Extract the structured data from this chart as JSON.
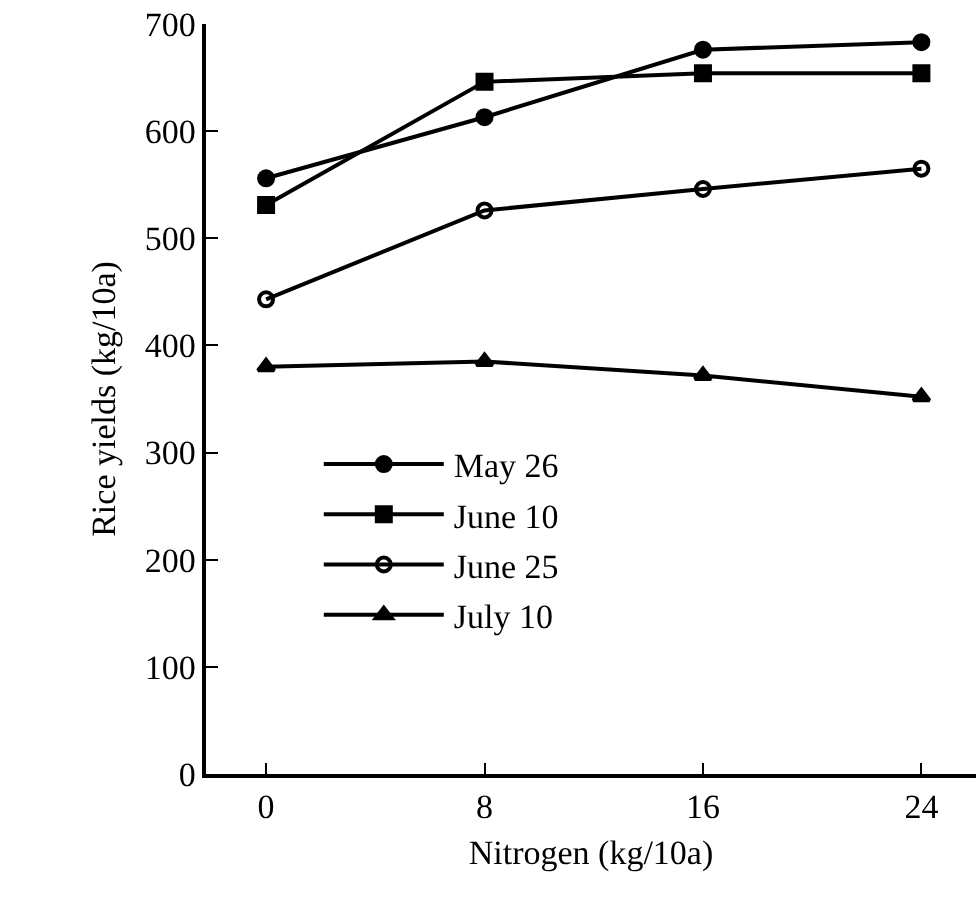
{
  "chart_data": {
    "type": "line",
    "xlabel": "Nitrogen (kg/10a)",
    "ylabel": "Rice yields (kg/10a)",
    "x": [
      0,
      8,
      16,
      24
    ],
    "series": [
      {
        "name": "May 26",
        "color": "#000000",
        "marker": "circle",
        "values": [
          556,
          613,
          676,
          683
        ]
      },
      {
        "name": "June 10",
        "color": "#000000",
        "marker": "square",
        "values": [
          531,
          646,
          654,
          654
        ]
      },
      {
        "name": "June 25",
        "color": "#000000",
        "marker": "circle-open",
        "values": [
          443,
          526,
          546,
          565
        ]
      },
      {
        "name": "July 10",
        "color": "#000000",
        "marker": "triangle",
        "values": [
          380,
          385,
          372,
          352
        ]
      }
    ],
    "xlim": [
      -2.2,
      26
    ],
    "xticks": [
      0,
      8,
      16,
      24
    ],
    "ylim": [
      0,
      700
    ],
    "yticks": [
      0,
      100,
      200,
      300,
      400,
      500,
      600,
      700
    ],
    "grid": false,
    "legend": "center left",
    "line_style": "solid"
  }
}
